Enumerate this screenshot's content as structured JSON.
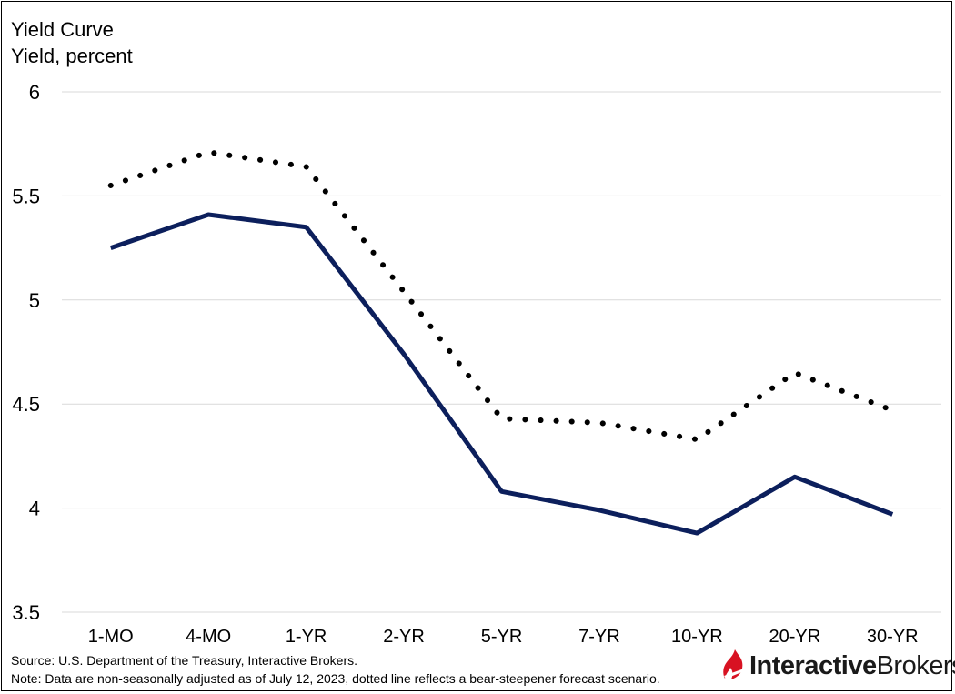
{
  "chart_data": {
    "type": "line",
    "title": "Yield Curve",
    "ylabel": "Yield, percent",
    "xlabel": "",
    "categories": [
      "1-MO",
      "4-MO",
      "1-YR",
      "2-YR",
      "5-YR",
      "7-YR",
      "10-YR",
      "20-YR",
      "30-YR"
    ],
    "ylim": [
      3.5,
      6
    ],
    "yticks": [
      "3.5",
      "4",
      "4.5",
      "5",
      "5.5",
      "6"
    ],
    "grid": "horizontal",
    "series": [
      {
        "style": "solid",
        "color": "#0c1f5c",
        "values": [
          5.25,
          5.41,
          5.35,
          4.74,
          4.08,
          3.99,
          3.88,
          4.15,
          3.97
        ]
      },
      {
        "style": "dotted",
        "color": "#000000",
        "values": [
          5.55,
          5.71,
          5.64,
          5.04,
          4.43,
          4.41,
          4.33,
          4.65,
          4.47
        ]
      }
    ],
    "source": "Source: U.S. Department of the Treasury, Interactive Brokers.",
    "note": "Note: Data are non-seasonally adjusted as of July 12, 2023, dotted line reflects a bear-steepener forecast scenario."
  },
  "logo": {
    "name_bold": "Interactive",
    "name_regular": "Brokers",
    "icon": "interactive-brokers-flame-icon",
    "color": "#d81222"
  }
}
